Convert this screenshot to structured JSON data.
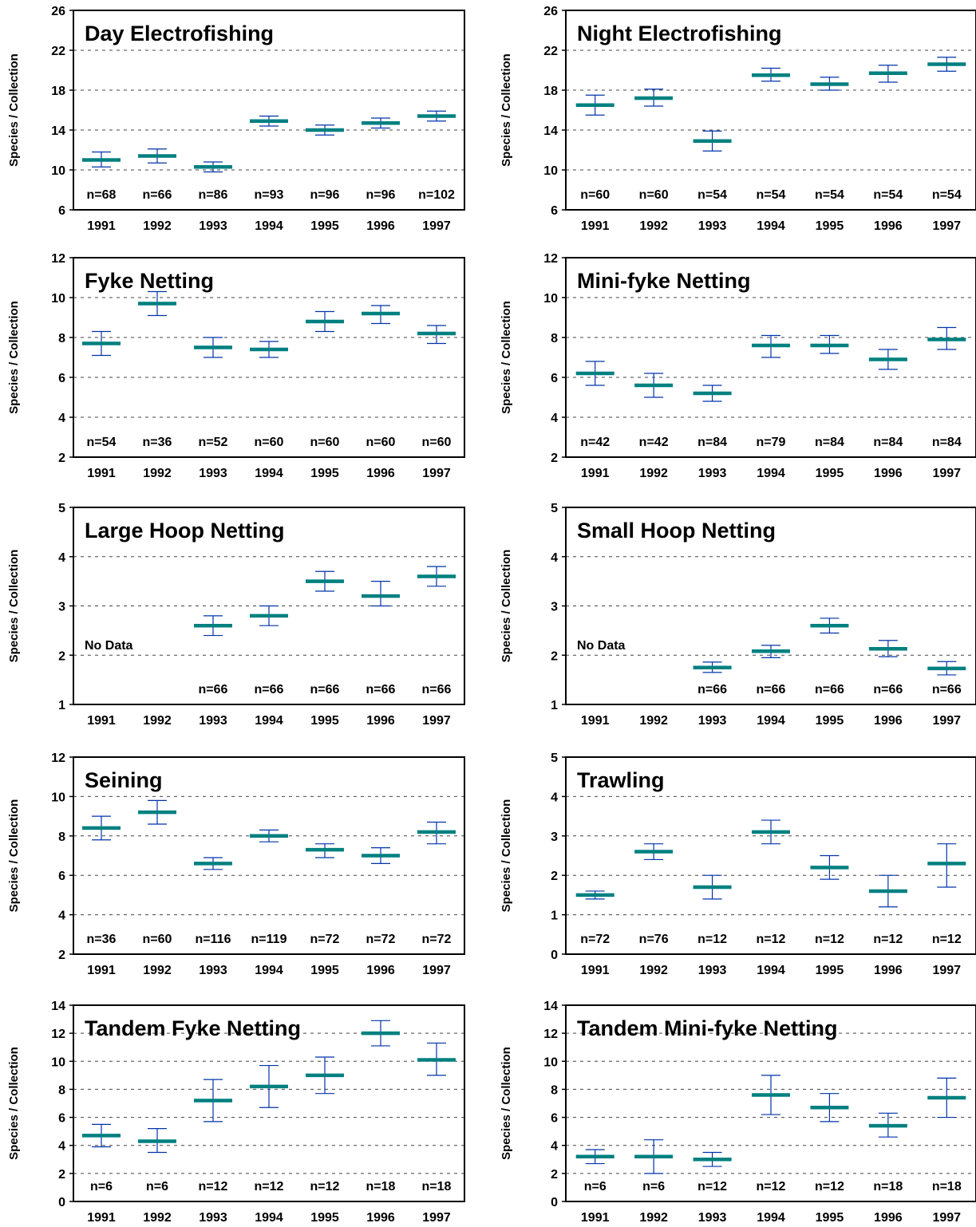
{
  "chart_data": [
    {
      "type": "line",
      "title": "Day Electrofishing",
      "ylabel": "Species / Collection",
      "ylim": [
        6,
        26
      ],
      "yticks": [
        6,
        10,
        14,
        18,
        22,
        26
      ],
      "categories": [
        "1991",
        "1992",
        "1993",
        "1994",
        "1995",
        "1996",
        "1997"
      ],
      "n_labels": [
        "n=68",
        "n=66",
        "n=86",
        "n=93",
        "n=96",
        "n=96",
        "n=102"
      ],
      "means": [
        11.0,
        11.4,
        10.3,
        14.9,
        14.0,
        14.7,
        15.4
      ],
      "lower": [
        10.3,
        10.7,
        9.8,
        14.4,
        13.5,
        14.2,
        14.9
      ],
      "upper": [
        11.8,
        12.1,
        10.8,
        15.4,
        14.5,
        15.2,
        15.9
      ],
      "no_data_label": "",
      "grid": "dashed-horizontal",
      "colors": {
        "mean": "#008080",
        "error": "#0033aa"
      }
    },
    {
      "type": "line",
      "title": "Night Electrofishing",
      "ylabel": "Species / Collection",
      "ylim": [
        6,
        26
      ],
      "yticks": [
        6,
        10,
        14,
        18,
        22,
        26
      ],
      "categories": [
        "1991",
        "1992",
        "1993",
        "1994",
        "1995",
        "1996",
        "1997"
      ],
      "n_labels": [
        "n=60",
        "n=60",
        "n=54",
        "n=54",
        "n=54",
        "n=54",
        "n=54"
      ],
      "means": [
        16.5,
        17.2,
        12.9,
        19.5,
        18.6,
        19.7,
        20.6
      ],
      "lower": [
        15.5,
        16.4,
        11.9,
        18.9,
        18.0,
        18.8,
        19.9
      ],
      "upper": [
        17.5,
        18.1,
        13.9,
        20.2,
        19.3,
        20.5,
        21.3
      ],
      "no_data_label": "",
      "grid": "dashed-horizontal",
      "colors": {
        "mean": "#008080",
        "error": "#0033aa"
      }
    },
    {
      "type": "line",
      "title": "Fyke Netting",
      "ylabel": "Species / Collection",
      "ylim": [
        2,
        12
      ],
      "yticks": [
        2,
        4,
        6,
        8,
        10,
        12
      ],
      "categories": [
        "1991",
        "1992",
        "1993",
        "1994",
        "1995",
        "1996",
        "1997"
      ],
      "n_labels": [
        "n=54",
        "n=36",
        "n=52",
        "n=60",
        "n=60",
        "n=60",
        "n=60"
      ],
      "means": [
        7.7,
        9.7,
        7.5,
        7.4,
        8.8,
        9.2,
        8.2
      ],
      "lower": [
        7.1,
        9.1,
        7.0,
        7.0,
        8.3,
        8.7,
        7.7
      ],
      "upper": [
        8.3,
        10.3,
        8.0,
        7.8,
        9.3,
        9.6,
        8.6
      ],
      "no_data_label": "",
      "grid": "dashed-horizontal",
      "colors": {
        "mean": "#008080",
        "error": "#0033aa"
      }
    },
    {
      "type": "line",
      "title": "Mini-fyke Netting",
      "ylabel": "Species / Collection",
      "ylim": [
        2,
        12
      ],
      "yticks": [
        2,
        4,
        6,
        8,
        10,
        12
      ],
      "categories": [
        "1991",
        "1992",
        "1993",
        "1994",
        "1995",
        "1996",
        "1997"
      ],
      "n_labels": [
        "n=42",
        "n=42",
        "n=84",
        "n=79",
        "n=84",
        "n=84",
        "n=84"
      ],
      "means": [
        6.2,
        5.6,
        5.2,
        7.6,
        7.6,
        6.9,
        7.9
      ],
      "lower": [
        5.6,
        5.0,
        4.8,
        7.0,
        7.2,
        6.4,
        7.4
      ],
      "upper": [
        6.8,
        6.2,
        5.6,
        8.1,
        8.1,
        7.4,
        8.5
      ],
      "no_data_label": "",
      "grid": "dashed-horizontal",
      "colors": {
        "mean": "#008080",
        "error": "#0033aa"
      }
    },
    {
      "type": "line",
      "title": "Large Hoop Netting",
      "ylabel": "Species / Collection",
      "ylim": [
        1,
        5
      ],
      "yticks": [
        1,
        2,
        3,
        4,
        5
      ],
      "categories": [
        "1991",
        "1992",
        "1993",
        "1994",
        "1995",
        "1996",
        "1997"
      ],
      "n_labels": [
        "",
        "",
        "n=66",
        "n=66",
        "n=66",
        "n=66",
        "n=66"
      ],
      "means": [
        null,
        null,
        2.6,
        2.8,
        3.5,
        3.2,
        3.6
      ],
      "lower": [
        null,
        null,
        2.4,
        2.6,
        3.3,
        3.0,
        3.4
      ],
      "upper": [
        null,
        null,
        2.8,
        3.0,
        3.7,
        3.5,
        3.8
      ],
      "no_data_label": "No Data",
      "grid": "dashed-horizontal",
      "colors": {
        "mean": "#008080",
        "error": "#0033aa"
      }
    },
    {
      "type": "line",
      "title": "Small Hoop Netting",
      "ylabel": "Species / Collection",
      "ylim": [
        1,
        5
      ],
      "yticks": [
        1,
        2,
        3,
        4,
        5
      ],
      "categories": [
        "1991",
        "1992",
        "1993",
        "1994",
        "1995",
        "1996",
        "1997"
      ],
      "n_labels": [
        "",
        "",
        "n=66",
        "n=66",
        "n=66",
        "n=66",
        "n=66"
      ],
      "means": [
        null,
        null,
        1.75,
        2.08,
        2.6,
        2.13,
        1.73
      ],
      "lower": [
        null,
        null,
        1.65,
        1.95,
        2.45,
        1.97,
        1.6
      ],
      "upper": [
        null,
        null,
        1.86,
        2.2,
        2.75,
        2.3,
        1.87
      ],
      "no_data_label": "No Data",
      "grid": "dashed-horizontal",
      "colors": {
        "mean": "#008080",
        "error": "#0033aa"
      }
    },
    {
      "type": "line",
      "title": "Seining",
      "ylabel": "Species / Collection",
      "ylim": [
        2,
        12
      ],
      "yticks": [
        2,
        4,
        6,
        8,
        10,
        12
      ],
      "categories": [
        "1991",
        "1992",
        "1993",
        "1994",
        "1995",
        "1996",
        "1997"
      ],
      "n_labels": [
        "n=36",
        "n=60",
        "n=116",
        "n=119",
        "n=72",
        "n=72",
        "n=72"
      ],
      "means": [
        8.4,
        9.2,
        6.6,
        8.0,
        7.3,
        7.0,
        8.2
      ],
      "lower": [
        7.8,
        8.6,
        6.3,
        7.7,
        6.9,
        6.6,
        7.6
      ],
      "upper": [
        9.0,
        9.8,
        6.9,
        8.3,
        7.6,
        7.4,
        8.7
      ],
      "no_data_label": "",
      "grid": "dashed-horizontal",
      "colors": {
        "mean": "#008080",
        "error": "#0033aa"
      }
    },
    {
      "type": "line",
      "title": "Trawling",
      "ylabel": "Species / Collection",
      "ylim": [
        0,
        5
      ],
      "yticks": [
        0,
        1,
        2,
        3,
        4,
        5
      ],
      "categories": [
        "1991",
        "1992",
        "1993",
        "1994",
        "1995",
        "1996",
        "1997"
      ],
      "n_labels": [
        "n=72",
        "n=76",
        "n=12",
        "n=12",
        "n=12",
        "n=12",
        "n=12"
      ],
      "means": [
        1.5,
        2.6,
        1.7,
        3.1,
        2.2,
        1.6,
        2.3
      ],
      "lower": [
        1.4,
        2.4,
        1.4,
        2.8,
        1.9,
        1.2,
        1.7
      ],
      "upper": [
        1.6,
        2.8,
        2.0,
        3.4,
        2.5,
        2.0,
        2.8
      ],
      "no_data_label": "",
      "grid": "dashed-horizontal",
      "colors": {
        "mean": "#008080",
        "error": "#0033aa"
      }
    },
    {
      "type": "line",
      "title": "Tandem Fyke Netting",
      "ylabel": "Species / Collection",
      "ylim": [
        0,
        14
      ],
      "yticks": [
        0,
        2,
        4,
        6,
        8,
        10,
        12,
        14
      ],
      "categories": [
        "1991",
        "1992",
        "1993",
        "1994",
        "1995",
        "1996",
        "1997"
      ],
      "n_labels": [
        "n=6",
        "n=6",
        "n=12",
        "n=12",
        "n=12",
        "n=18",
        "n=18"
      ],
      "means": [
        4.7,
        4.3,
        7.2,
        8.2,
        9.0,
        12.0,
        10.1
      ],
      "lower": [
        3.9,
        3.5,
        5.7,
        6.7,
        7.7,
        11.1,
        9.0
      ],
      "upper": [
        5.5,
        5.2,
        8.7,
        9.7,
        10.3,
        12.9,
        11.3
      ],
      "no_data_label": "",
      "grid": "dashed-horizontal",
      "colors": {
        "mean": "#008080",
        "error": "#0033aa"
      }
    },
    {
      "type": "line",
      "title": "Tandem Mini-fyke Netting",
      "ylabel": "Species / Collection",
      "ylim": [
        0,
        14
      ],
      "yticks": [
        0,
        2,
        4,
        6,
        8,
        10,
        12,
        14
      ],
      "categories": [
        "1991",
        "1992",
        "1993",
        "1994",
        "1995",
        "1996",
        "1997"
      ],
      "n_labels": [
        "n=6",
        "n=6",
        "n=12",
        "n=12",
        "n=12",
        "n=18",
        "n=18"
      ],
      "means": [
        3.2,
        3.2,
        3.0,
        7.6,
        6.7,
        5.4,
        7.4
      ],
      "lower": [
        2.7,
        2.0,
        2.5,
        6.2,
        5.7,
        4.6,
        6.0
      ],
      "upper": [
        3.7,
        4.4,
        3.5,
        9.0,
        7.7,
        6.3,
        8.8
      ],
      "no_data_label": "",
      "grid": "dashed-horizontal",
      "colors": {
        "mean": "#008080",
        "error": "#0033aa"
      }
    }
  ]
}
